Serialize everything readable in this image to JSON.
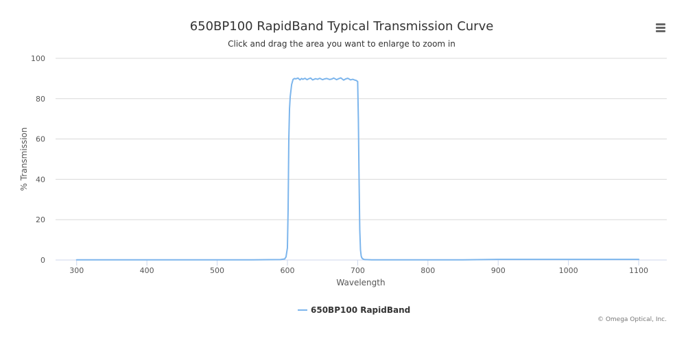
{
  "chart_data": {
    "type": "line",
    "title": "650BP100 RapidBand Typical Transmission Curve",
    "subtitle": "Click and drag the area you want to enlarge to zoom in",
    "xlabel": "Wavelength",
    "ylabel": "% Transmission",
    "xlim": [
      270,
      1140
    ],
    "ylim": [
      0,
      100
    ],
    "x_ticks": [
      300,
      400,
      500,
      600,
      700,
      800,
      900,
      1000,
      1100
    ],
    "y_ticks": [
      0,
      20,
      40,
      60,
      80,
      100
    ],
    "grid": true,
    "legend": "bottom-center",
    "colors": {
      "series": "#7cb5ec",
      "grid": "#d8d8d8",
      "axis": "#ccd6eb"
    },
    "series": [
      {
        "name": "650BP100 RapidBand",
        "x": [
          300,
          350,
          400,
          450,
          500,
          550,
          590,
          596,
          598,
          600,
          601,
          602,
          603,
          604,
          605,
          606,
          608,
          610,
          612,
          615,
          618,
          620,
          622,
          625,
          628,
          630,
          633,
          636,
          640,
          643,
          646,
          650,
          653,
          656,
          660,
          663,
          666,
          670,
          673,
          676,
          680,
          683,
          686,
          690,
          693,
          696,
          698,
          700,
          701,
          702,
          703,
          704,
          705,
          706,
          708,
          710,
          720,
          750,
          800,
          850,
          880,
          900,
          950,
          1000,
          1050,
          1100
        ],
        "y": [
          0.1,
          0.1,
          0.1,
          0.1,
          0.1,
          0.1,
          0.2,
          0.5,
          1.5,
          6,
          25,
          60,
          75,
          81,
          84,
          87,
          89.5,
          90,
          89.8,
          90.2,
          89.3,
          90,
          89.6,
          90.1,
          89.4,
          89.8,
          90.2,
          89.3,
          89.9,
          89.6,
          90.1,
          89.4,
          89.8,
          90,
          89.5,
          89.7,
          90.2,
          89.4,
          89.9,
          90.3,
          89.2,
          89.8,
          90.1,
          89.3,
          89.6,
          89.2,
          89,
          88.5,
          70,
          40,
          15,
          5,
          2,
          1,
          0.4,
          0.2,
          0.1,
          0.1,
          0.1,
          0.1,
          0.2,
          0.3,
          0.3,
          0.3,
          0.3,
          0.3
        ]
      }
    ],
    "credits": "© Omega Optical, Inc."
  },
  "menu": {
    "icon": "hamburger-menu-icon"
  }
}
